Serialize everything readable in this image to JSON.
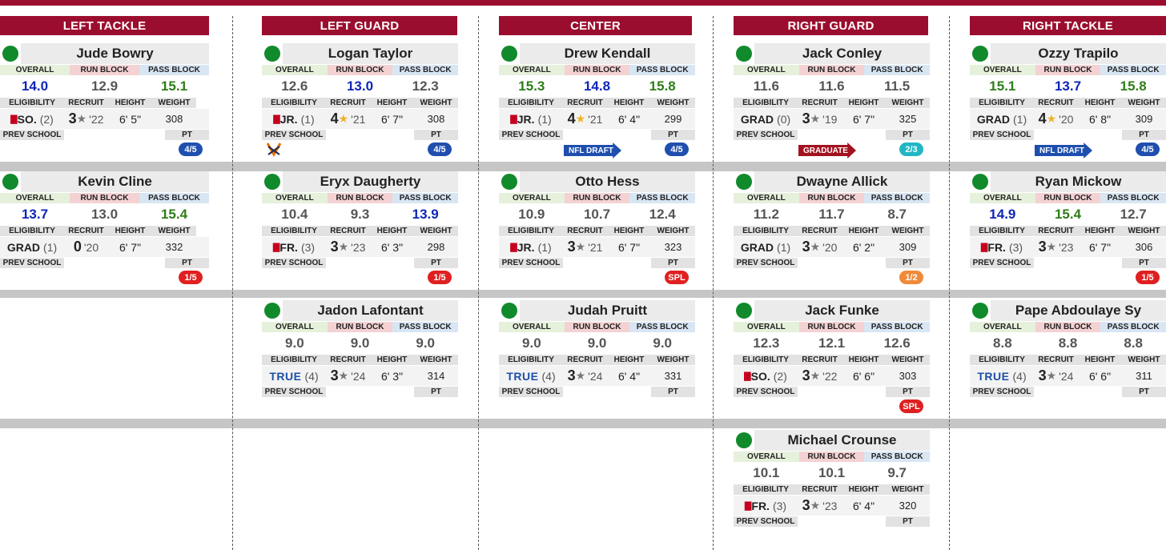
{
  "labels": {
    "overall": "OVERALL",
    "run_block": "RUN BLOCK",
    "pass_block": "PASS BLOCK",
    "eligibility": "ELIGIBILITY",
    "recruit": "RECRUIT",
    "height": "HEIGHT",
    "weight": "WEIGHT",
    "prev_school": "PREV SCHOOL",
    "pt": "PT"
  },
  "colors": {
    "header": "#9b0d2e",
    "blue_value": "#0f25b8",
    "green_value": "#2e7d1a",
    "status_dot": "#118a2b"
  },
  "positions": [
    {
      "title": "LEFT TACKLE",
      "players": [
        {
          "name": "Jude Bowry",
          "overall": "14.0",
          "ov_color": "blue",
          "run_block": "12.9",
          "rb_color": "gray",
          "pass_block": "15.1",
          "pb_color": "green",
          "year": "SO.",
          "redshirt": true,
          "year_num": "(2)",
          "stars": "3",
          "gold": false,
          "recruit_year": "'22",
          "height": "6' 5\"",
          "weight": "308",
          "pt": "4/5",
          "pt_color": "blue"
        },
        {
          "name": "Kevin Cline",
          "overall": "13.7",
          "ov_color": "blue",
          "run_block": "13.0",
          "rb_color": "gray",
          "pass_block": "15.4",
          "pb_color": "green",
          "year": "GRAD",
          "redshirt": false,
          "year_num": "(1)",
          "stars": "0",
          "gold": false,
          "no_star": true,
          "recruit_year": "'20",
          "height": "6' 7\"",
          "weight": "332",
          "pt": "1/5",
          "pt_color": "red"
        }
      ]
    },
    {
      "title": "LEFT GUARD",
      "players": [
        {
          "name": "Logan Taylor",
          "overall": "12.6",
          "ov_color": "gray",
          "run_block": "13.0",
          "rb_color": "blue",
          "pass_block": "12.3",
          "pb_color": "gray",
          "year": "JR.",
          "redshirt": true,
          "year_num": "(1)",
          "stars": "4",
          "gold": true,
          "recruit_year": "'21",
          "height": "6' 7\"",
          "weight": "308",
          "pt": "4/5",
          "pt_color": "blue",
          "prev_logo": "virginia-logo"
        },
        {
          "name": "Eryx Daugherty",
          "overall": "10.4",
          "ov_color": "gray",
          "run_block": "9.3",
          "rb_color": "gray",
          "pass_block": "13.9",
          "pb_color": "blue",
          "year": "FR.",
          "redshirt": true,
          "year_num": "(3)",
          "stars": "3",
          "gold": false,
          "recruit_year": "'23",
          "height": "6' 3\"",
          "weight": "298",
          "pt": "1/5",
          "pt_color": "red"
        },
        {
          "name": "Jadon Lafontant",
          "overall": "9.0",
          "ov_color": "gray",
          "run_block": "9.0",
          "rb_color": "gray",
          "pass_block": "9.0",
          "pb_color": "gray",
          "year": "TRUE",
          "redshirt": false,
          "true_fr": true,
          "year_num": "(4)",
          "stars": "3",
          "gold": false,
          "recruit_year": "'24",
          "height": "6' 3\"",
          "weight": "314"
        }
      ]
    },
    {
      "title": "CENTER",
      "players": [
        {
          "name": "Drew Kendall",
          "overall": "15.3",
          "ov_color": "green",
          "run_block": "14.8",
          "rb_color": "blue",
          "pass_block": "15.8",
          "pb_color": "green",
          "year": "JR.",
          "redshirt": true,
          "year_num": "(1)",
          "stars": "4",
          "gold": true,
          "recruit_year": "'21",
          "height": "6' 4\"",
          "weight": "299",
          "pt": "4/5",
          "pt_color": "blue",
          "tag": "NFL DRAFT",
          "tag_color": "blue"
        },
        {
          "name": "Otto Hess",
          "overall": "10.9",
          "ov_color": "gray",
          "run_block": "10.7",
          "rb_color": "gray",
          "pass_block": "12.4",
          "pb_color": "gray",
          "year": "JR.",
          "redshirt": true,
          "year_num": "(1)",
          "stars": "3",
          "gold": false,
          "recruit_year": "'21",
          "height": "6' 7\"",
          "weight": "323",
          "pt": "SPL",
          "pt_color": "red"
        },
        {
          "name": "Judah Pruitt",
          "overall": "9.0",
          "ov_color": "gray",
          "run_block": "9.0",
          "rb_color": "gray",
          "pass_block": "9.0",
          "pb_color": "gray",
          "year": "TRUE",
          "redshirt": false,
          "true_fr": true,
          "year_num": "(4)",
          "stars": "3",
          "gold": false,
          "recruit_year": "'24",
          "height": "6' 4\"",
          "weight": "331"
        }
      ]
    },
    {
      "title": "RIGHT GUARD",
      "players": [
        {
          "name": "Jack Conley",
          "overall": "11.6",
          "ov_color": "gray",
          "run_block": "11.6",
          "rb_color": "gray",
          "pass_block": "11.5",
          "pb_color": "gray",
          "year": "GRAD",
          "redshirt": false,
          "year_num": "(0)",
          "stars": "3",
          "gold": false,
          "recruit_year": "'19",
          "height": "6' 7\"",
          "weight": "325",
          "pt": "2/3",
          "pt_color": "teal",
          "tag": "GRADUATE",
          "tag_color": "red"
        },
        {
          "name": "Dwayne Allick",
          "overall": "11.2",
          "ov_color": "gray",
          "run_block": "11.7",
          "rb_color": "gray",
          "pass_block": "8.7",
          "pb_color": "gray",
          "year": "GRAD",
          "redshirt": false,
          "year_num": "(1)",
          "stars": "3",
          "gold": false,
          "recruit_year": "'20",
          "height": "6' 2\"",
          "weight": "309",
          "pt": "1/2",
          "pt_color": "orange"
        },
        {
          "name": "Jack Funke",
          "overall": "12.3",
          "ov_color": "gray",
          "run_block": "12.1",
          "rb_color": "gray",
          "pass_block": "12.6",
          "pb_color": "gray",
          "year": "SO.",
          "redshirt": true,
          "year_num": "(2)",
          "stars": "3",
          "gold": false,
          "recruit_year": "'22",
          "height": "6' 6\"",
          "weight": "303",
          "pt": "SPL",
          "pt_color": "red"
        },
        {
          "name": "Michael Crounse",
          "overall": "10.1",
          "ov_color": "gray",
          "run_block": "10.1",
          "rb_color": "gray",
          "pass_block": "9.7",
          "pb_color": "gray",
          "year": "FR.",
          "redshirt": true,
          "year_num": "(3)",
          "stars": "3",
          "gold": false,
          "recruit_year": "'23",
          "height": "6' 4\"",
          "weight": "320"
        }
      ]
    },
    {
      "title": "RIGHT TACKLE",
      "players": [
        {
          "name": "Ozzy Trapilo",
          "overall": "15.1",
          "ov_color": "green",
          "run_block": "13.7",
          "rb_color": "blue",
          "pass_block": "15.8",
          "pb_color": "green",
          "year": "GRAD",
          "redshirt": false,
          "year_num": "(1)",
          "stars": "4",
          "gold": true,
          "recruit_year": "'20",
          "height": "6' 8\"",
          "weight": "309",
          "pt": "4/5",
          "pt_color": "blue",
          "tag": "NFL DRAFT",
          "tag_color": "blue"
        },
        {
          "name": "Ryan Mickow",
          "overall": "14.9",
          "ov_color": "blue",
          "run_block": "15.4",
          "rb_color": "green",
          "pass_block": "12.7",
          "pb_color": "gray",
          "year": "FR.",
          "redshirt": true,
          "year_num": "(3)",
          "stars": "3",
          "gold": false,
          "recruit_year": "'23",
          "height": "6' 7\"",
          "weight": "306",
          "pt": "1/5",
          "pt_color": "red"
        },
        {
          "name": "Pape Abdoulaye Sy",
          "overall": "8.8",
          "ov_color": "gray",
          "run_block": "8.8",
          "rb_color": "gray",
          "pass_block": "8.8",
          "pb_color": "gray",
          "year": "TRUE",
          "redshirt": false,
          "true_fr": true,
          "year_num": "(4)",
          "stars": "3",
          "gold": false,
          "recruit_year": "'24",
          "height": "6' 6\"",
          "weight": "311"
        }
      ]
    }
  ]
}
